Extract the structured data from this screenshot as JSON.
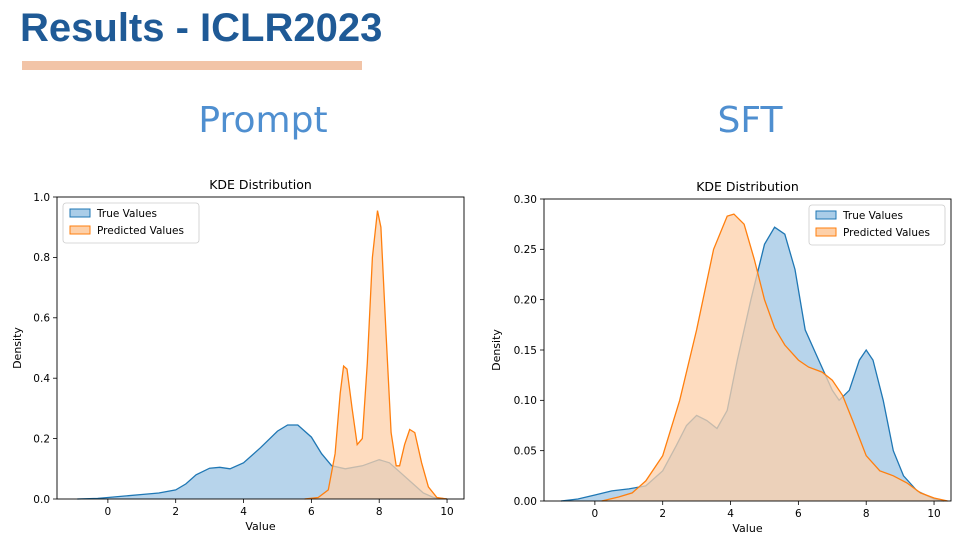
{
  "slide": {
    "title": "Results - ICLR2023",
    "accent_color": "#1f5a96",
    "underline_color": "#f2c4a7",
    "heading_color": "#4f8fd0"
  },
  "panels": [
    {
      "heading": "Prompt"
    },
    {
      "heading": "SFT"
    }
  ],
  "chart_data": [
    {
      "type": "area",
      "title": "KDE Distribution",
      "xlabel": "Value",
      "ylabel": "Density",
      "xlim": [
        -1.5,
        10.5
      ],
      "ylim": [
        0,
        1.0
      ],
      "xticks": [
        0,
        2,
        4,
        6,
        8,
        10
      ],
      "xtick_labels": [
        "0",
        "2",
        "4",
        "6",
        "8",
        "10"
      ],
      "yticks": [
        0,
        0.2,
        0.4,
        0.6,
        0.8,
        1.0
      ],
      "ytick_labels": [
        "0.0",
        "0.2",
        "0.4",
        "0.6",
        "0.8",
        "1.0"
      ],
      "legend_position": "top-left",
      "series": [
        {
          "name": "True Values",
          "color": "#1f77b4",
          "fill": "#aacde8",
          "points": [
            [
              -0.9,
              0
            ],
            [
              -0.3,
              0.002
            ],
            [
              0,
              0.005
            ],
            [
              0.5,
              0.01
            ],
            [
              1,
              0.015
            ],
            [
              1.5,
              0.02
            ],
            [
              2,
              0.03
            ],
            [
              2.3,
              0.05
            ],
            [
              2.6,
              0.08
            ],
            [
              3,
              0.102
            ],
            [
              3.3,
              0.105
            ],
            [
              3.6,
              0.1
            ],
            [
              4,
              0.12
            ],
            [
              4.5,
              0.17
            ],
            [
              5,
              0.225
            ],
            [
              5.3,
              0.245
            ],
            [
              5.6,
              0.245
            ],
            [
              6,
              0.205
            ],
            [
              6.3,
              0.15
            ],
            [
              6.6,
              0.11
            ],
            [
              7,
              0.1
            ],
            [
              7.5,
              0.11
            ],
            [
              8,
              0.13
            ],
            [
              8.3,
              0.12
            ],
            [
              8.6,
              0.09
            ],
            [
              9,
              0.05
            ],
            [
              9.3,
              0.02
            ],
            [
              9.6,
              0.005
            ],
            [
              10,
              0
            ]
          ]
        },
        {
          "name": "Predicted Values",
          "color": "#ff7f0e",
          "fill": "#fdd0a9",
          "points": [
            [
              5.8,
              0
            ],
            [
              6.2,
              0.005
            ],
            [
              6.5,
              0.03
            ],
            [
              6.7,
              0.15
            ],
            [
              6.85,
              0.35
            ],
            [
              6.95,
              0.44
            ],
            [
              7.05,
              0.43
            ],
            [
              7.2,
              0.3
            ],
            [
              7.35,
              0.18
            ],
            [
              7.5,
              0.2
            ],
            [
              7.65,
              0.45
            ],
            [
              7.8,
              0.8
            ],
            [
              7.95,
              0.955
            ],
            [
              8.05,
              0.9
            ],
            [
              8.2,
              0.55
            ],
            [
              8.35,
              0.22
            ],
            [
              8.5,
              0.11
            ],
            [
              8.6,
              0.11
            ],
            [
              8.75,
              0.18
            ],
            [
              8.9,
              0.23
            ],
            [
              9.05,
              0.22
            ],
            [
              9.25,
              0.12
            ],
            [
              9.45,
              0.04
            ],
            [
              9.7,
              0.005
            ],
            [
              10,
              0
            ]
          ]
        }
      ]
    },
    {
      "type": "area",
      "title": "KDE Distribution",
      "xlabel": "Value",
      "ylabel": "Density",
      "xlim": [
        -1.5,
        10.5
      ],
      "ylim": [
        0,
        0.3
      ],
      "xticks": [
        0,
        2,
        4,
        6,
        8,
        10
      ],
      "xtick_labels": [
        "0",
        "2",
        "4",
        "6",
        "8",
        "10"
      ],
      "yticks": [
        0,
        0.05,
        0.1,
        0.15,
        0.2,
        0.25,
        0.3
      ],
      "ytick_labels": [
        "0.00",
        "0.05",
        "0.10",
        "0.15",
        "0.20",
        "0.25",
        "0.30"
      ],
      "legend_position": "top-right",
      "series": [
        {
          "name": "True Values",
          "color": "#1f77b4",
          "fill": "#aacde8",
          "points": [
            [
              -1,
              0
            ],
            [
              -0.5,
              0.002
            ],
            [
              0,
              0.006
            ],
            [
              0.5,
              0.01
            ],
            [
              1,
              0.012
            ],
            [
              1.5,
              0.015
            ],
            [
              2,
              0.03
            ],
            [
              2.4,
              0.055
            ],
            [
              2.7,
              0.075
            ],
            [
              3,
              0.085
            ],
            [
              3.3,
              0.08
            ],
            [
              3.6,
              0.072
            ],
            [
              3.9,
              0.09
            ],
            [
              4.2,
              0.14
            ],
            [
              4.6,
              0.2
            ],
            [
              5,
              0.255
            ],
            [
              5.3,
              0.272
            ],
            [
              5.6,
              0.265
            ],
            [
              5.9,
              0.23
            ],
            [
              6.2,
              0.17
            ],
            [
              6.6,
              0.14
            ],
            [
              7,
              0.11
            ],
            [
              7.2,
              0.1
            ],
            [
              7.5,
              0.11
            ],
            [
              7.8,
              0.14
            ],
            [
              8,
              0.15
            ],
            [
              8.2,
              0.14
            ],
            [
              8.5,
              0.1
            ],
            [
              8.8,
              0.05
            ],
            [
              9.1,
              0.025
            ],
            [
              9.5,
              0.01
            ],
            [
              10,
              0.002
            ],
            [
              10.3,
              0
            ]
          ]
        },
        {
          "name": "Predicted Values",
          "color": "#ff7f0e",
          "fill": "#fdd0a9",
          "points": [
            [
              0.2,
              0
            ],
            [
              0.7,
              0.004
            ],
            [
              1.1,
              0.008
            ],
            [
              1.5,
              0.02
            ],
            [
              2,
              0.045
            ],
            [
              2.5,
              0.1
            ],
            [
              3,
              0.17
            ],
            [
              3.5,
              0.25
            ],
            [
              3.9,
              0.283
            ],
            [
              4.1,
              0.285
            ],
            [
              4.4,
              0.275
            ],
            [
              4.7,
              0.24
            ],
            [
              5,
              0.2
            ],
            [
              5.3,
              0.172
            ],
            [
              5.6,
              0.155
            ],
            [
              6,
              0.14
            ],
            [
              6.3,
              0.133
            ],
            [
              6.7,
              0.128
            ],
            [
              7,
              0.12
            ],
            [
              7.3,
              0.105
            ],
            [
              7.6,
              0.08
            ],
            [
              8,
              0.045
            ],
            [
              8.4,
              0.03
            ],
            [
              8.8,
              0.025
            ],
            [
              9.2,
              0.018
            ],
            [
              9.6,
              0.008
            ],
            [
              10,
              0.003
            ],
            [
              10.4,
              0
            ]
          ]
        }
      ]
    }
  ]
}
